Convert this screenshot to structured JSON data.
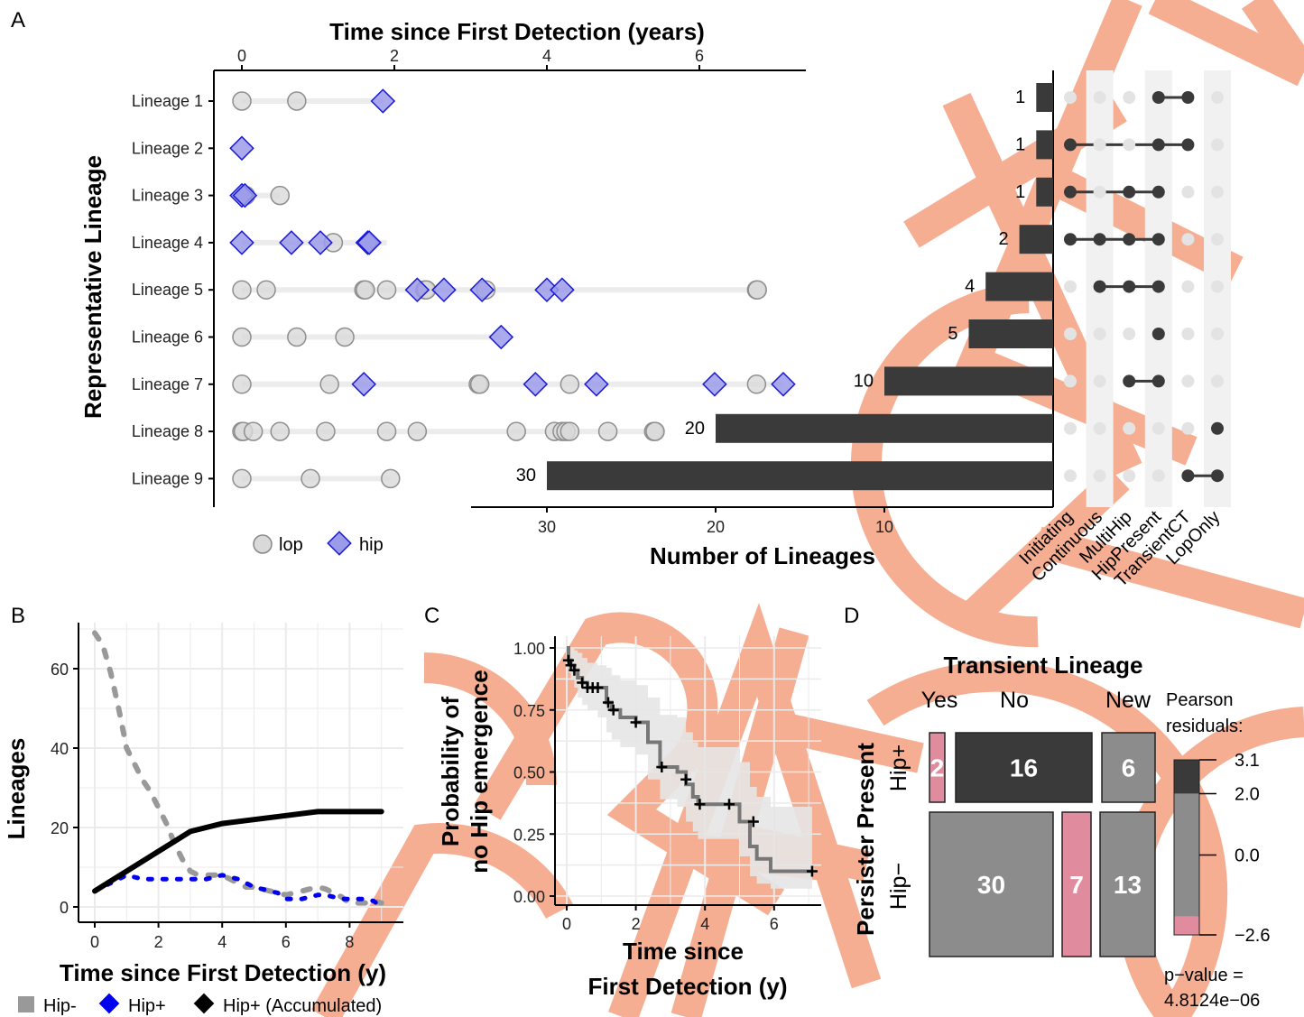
{
  "panels": {
    "A": "A",
    "B": "B",
    "C": "C",
    "D": "D"
  },
  "colors": {
    "lop": "#d9d9d9",
    "hip": "#9b9bea",
    "hip_stroke": "#1a1ad6",
    "bar": "#3a3a3a",
    "watermark": "#f5a080",
    "pink": "#e08c9e",
    "gray": "#8c8c8c",
    "dark": "#3a3a3a"
  },
  "chart_data": [
    {
      "id": "A-left",
      "type": "scatter",
      "title": "Time since First Detection (years)",
      "ylabel": "Representative Lineage",
      "xlim": [
        0,
        7.4
      ],
      "x_ticks": [
        "0",
        "2",
        "4",
        "6"
      ],
      "lineages": [
        "Lineage 1",
        "Lineage 2",
        "Lineage 3",
        "Lineage 4",
        "Lineage 5",
        "Lineage 6",
        "Lineage 7",
        "Lineage 8",
        "Lineage 9"
      ],
      "legend": [
        {
          "key": "lop",
          "label": "lop"
        },
        {
          "key": "hip",
          "label": "hip"
        }
      ],
      "points": {
        "lop": [
          [
            0,
            0
          ],
          [
            0.72,
            0
          ],
          [
            0.05,
            2
          ],
          [
            0.5,
            2
          ],
          [
            1.2,
            3
          ],
          [
            0,
            4
          ],
          [
            0.32,
            4
          ],
          [
            1.6,
            4
          ],
          [
            1.62,
            4
          ],
          [
            1.9,
            4
          ],
          [
            2.4,
            4
          ],
          [
            2.42,
            4
          ],
          [
            3.2,
            4
          ],
          [
            6.75,
            4
          ],
          [
            6.76,
            4
          ],
          [
            0,
            5
          ],
          [
            0.72,
            5
          ],
          [
            1.35,
            5
          ],
          [
            0,
            6
          ],
          [
            1.15,
            6
          ],
          [
            3.1,
            6
          ],
          [
            3.12,
            6
          ],
          [
            4.3,
            6
          ],
          [
            6.75,
            6
          ],
          [
            0,
            7
          ],
          [
            0.02,
            7
          ],
          [
            0.15,
            7
          ],
          [
            0.5,
            7
          ],
          [
            1.1,
            7
          ],
          [
            1.9,
            7
          ],
          [
            2.3,
            7
          ],
          [
            3.6,
            7
          ],
          [
            4.1,
            7
          ],
          [
            4.2,
            7
          ],
          [
            4.25,
            7
          ],
          [
            4.3,
            7
          ],
          [
            4.8,
            7
          ],
          [
            5.4,
            7
          ],
          [
            5.42,
            7
          ],
          [
            0,
            8
          ],
          [
            0.9,
            8
          ],
          [
            1.95,
            8
          ]
        ],
        "hip": [
          [
            1.85,
            0
          ],
          [
            0,
            1
          ],
          [
            0,
            2
          ],
          [
            0.04,
            2
          ],
          [
            0,
            3
          ],
          [
            0.65,
            3
          ],
          [
            1.03,
            3
          ],
          [
            1.65,
            3
          ],
          [
            1.67,
            3
          ],
          [
            2.3,
            4
          ],
          [
            2.65,
            4
          ],
          [
            3.15,
            4
          ],
          [
            4.0,
            4
          ],
          [
            4.2,
            4
          ],
          [
            3.4,
            5
          ],
          [
            1.6,
            6
          ],
          [
            3.85,
            6
          ],
          [
            4.65,
            6
          ],
          [
            6.2,
            6
          ],
          [
            7.1,
            6
          ]
        ]
      },
      "line_extent": [
        [
          0,
          1.85
        ],
        [
          0,
          0
        ],
        [
          0,
          0.5
        ],
        [
          0,
          1.9
        ],
        [
          0,
          6.75
        ],
        [
          0,
          3.4
        ],
        [
          0,
          7.1
        ],
        [
          0,
          5.42
        ],
        [
          0,
          1.95
        ]
      ]
    },
    {
      "id": "A-right",
      "type": "bar",
      "xlabel": "Number of Lineages",
      "x_ticks": [
        "30",
        "20",
        "10"
      ],
      "values": [
        1,
        1,
        1,
        2,
        4,
        5,
        10,
        20,
        30
      ],
      "sets": [
        "Initiating",
        "Continuous",
        "MultiHip",
        "HipPresent",
        "TransientCT",
        "LopOnly"
      ],
      "membership": [
        [
          0,
          0,
          0,
          1,
          1,
          0
        ],
        [
          1,
          0,
          0,
          1,
          1,
          0
        ],
        [
          1,
          0,
          1,
          1,
          0,
          0
        ],
        [
          1,
          1,
          1,
          1,
          0,
          0
        ],
        [
          0,
          1,
          1,
          1,
          0,
          0
        ],
        [
          0,
          0,
          0,
          1,
          0,
          0
        ],
        [
          0,
          0,
          1,
          1,
          0,
          0
        ],
        [
          0,
          0,
          0,
          0,
          0,
          1
        ],
        [
          0,
          0,
          0,
          0,
          1,
          1
        ]
      ]
    },
    {
      "id": "B",
      "type": "line",
      "xlabel": "Time since First Detection (y)",
      "ylabel": "Lineages",
      "xlim": [
        -0.5,
        9.3
      ],
      "ylim": [
        -1,
        72
      ],
      "x_ticks": [
        "0",
        "2",
        "4",
        "6",
        "8"
      ],
      "y_ticks": [
        "0",
        "20",
        "40",
        "60"
      ],
      "series": [
        {
          "name": "Hip-",
          "x": [
            0,
            0.25,
            0.5,
            0.75,
            1,
            1.25,
            1.5,
            1.75,
            2,
            2.25,
            2.5,
            2.75,
            3,
            3.25,
            3.5,
            3.75,
            4,
            4.25,
            4.5,
            4.75,
            5,
            5.25,
            5.5,
            5.75,
            6,
            6.25,
            6.5,
            6.75,
            7,
            7.25,
            7.5,
            7.75,
            8,
            8.25,
            8.5,
            8.75,
            9
          ],
          "values": [
            69,
            66,
            59,
            50,
            40,
            36,
            32,
            29,
            25,
            21,
            16,
            12,
            9,
            8,
            8,
            8,
            8,
            7,
            6,
            5,
            5,
            4.5,
            4,
            3.5,
            3,
            3.5,
            4,
            4.5,
            5,
            4.5,
            3.5,
            2.5,
            1,
            1,
            1,
            1.5,
            1
          ]
        },
        {
          "name": "Hip+",
          "x": [
            0,
            0.25,
            0.5,
            0.75,
            1,
            1.25,
            1.5,
            1.75,
            2,
            2.25,
            2.5,
            2.75,
            3,
            3.25,
            3.5,
            3.75,
            4,
            4.25,
            4.5,
            4.75,
            5,
            5.25,
            5.5,
            5.75,
            6,
            6.25,
            6.5,
            6.75,
            7,
            7.25,
            7.5,
            7.75,
            8,
            8.25,
            8.5,
            8.75,
            9
          ],
          "values": [
            4,
            5,
            6,
            7,
            8,
            7.5,
            7,
            7,
            7,
            7,
            7,
            7,
            7,
            7,
            7,
            7.5,
            8,
            7.5,
            7,
            6,
            5,
            4.5,
            4,
            3.5,
            2,
            2,
            2,
            2.5,
            3,
            3,
            2.5,
            2,
            2,
            2,
            2,
            1.5,
            0
          ]
        },
        {
          "name": "Hip+ (Accumulated)",
          "x": [
            0,
            1,
            2,
            3,
            4,
            5,
            6,
            7,
            8,
            9
          ],
          "values": [
            4,
            9,
            14,
            19,
            21,
            22,
            23,
            24,
            24,
            24
          ]
        }
      ]
    },
    {
      "id": "C",
      "type": "line",
      "xlabel": "Time since First Detection (y)",
      "ylabel": "Probability of no Hip emergence",
      "xlim": [
        -0.2,
        7.3
      ],
      "ylim": [
        -0.02,
        1.02
      ],
      "x_ticks": [
        "0",
        "2",
        "4",
        "6"
      ],
      "y_ticks": [
        "0.00",
        "0.25",
        "0.50",
        "0.75",
        "1.00"
      ],
      "step": {
        "x": [
          0,
          0.05,
          0.12,
          0.22,
          0.32,
          0.45,
          0.6,
          0.9,
          1.15,
          1.3,
          1.55,
          2.0,
          2.35,
          2.7,
          3.2,
          3.45,
          3.65,
          3.8,
          4.1,
          4.4,
          4.75,
          5.0,
          5.3,
          5.5,
          5.9,
          7.1
        ],
        "values": [
          1.0,
          0.95,
          0.93,
          0.91,
          0.88,
          0.86,
          0.84,
          0.84,
          0.78,
          0.75,
          0.72,
          0.7,
          0.62,
          0.52,
          0.5,
          0.45,
          0.4,
          0.37,
          0.37,
          0.37,
          0.37,
          0.3,
          0.2,
          0.15,
          0.1,
          0.1
        ]
      },
      "ci_upper": [
        1.0,
        1.0,
        1.0,
        0.99,
        0.98,
        0.96,
        0.94,
        0.93,
        0.92,
        0.89,
        0.87,
        0.85,
        0.8,
        0.73,
        0.72,
        0.66,
        0.62,
        0.6,
        0.6,
        0.6,
        0.6,
        0.54,
        0.44,
        0.4,
        0.36,
        0.36
      ],
      "ci_lower": [
        0.98,
        0.9,
        0.87,
        0.84,
        0.8,
        0.77,
        0.75,
        0.72,
        0.66,
        0.63,
        0.6,
        0.57,
        0.47,
        0.39,
        0.36,
        0.3,
        0.26,
        0.23,
        0.23,
        0.23,
        0.23,
        0.16,
        0.08,
        0.05,
        0.03,
        0.03
      ],
      "censor": [
        [
          0.05,
          0.95
        ],
        [
          0.12,
          0.93
        ],
        [
          0.22,
          0.91
        ],
        [
          0.45,
          0.86
        ],
        [
          0.6,
          0.84
        ],
        [
          0.75,
          0.84
        ],
        [
          0.9,
          0.84
        ],
        [
          1.2,
          0.78
        ],
        [
          1.35,
          0.75
        ],
        [
          2.0,
          0.7
        ],
        [
          2.75,
          0.52
        ],
        [
          3.45,
          0.47
        ],
        [
          3.85,
          0.37
        ],
        [
          4.7,
          0.37
        ],
        [
          5.4,
          0.3
        ],
        [
          7.1,
          0.1
        ]
      ]
    },
    {
      "id": "D",
      "type": "heatmap",
      "title": "Transient Lineage",
      "ylabel": "Persister Present",
      "columns": [
        "Yes",
        "No",
        "New"
      ],
      "rows": [
        "Hip+",
        "Hip−"
      ],
      "cells": [
        {
          "row": 0,
          "col": 0,
          "value": 2,
          "residual": "pink"
        },
        {
          "row": 0,
          "col": 1,
          "value": 16,
          "residual": "dark"
        },
        {
          "row": 0,
          "col": 2,
          "value": 6,
          "residual": "gray"
        },
        {
          "row": 1,
          "col": 0,
          "value": 30,
          "residual": "gray"
        },
        {
          "row": 1,
          "col": 1,
          "value": 7,
          "residual": "pink"
        },
        {
          "row": 1,
          "col": 2,
          "value": 13,
          "residual": "gray"
        }
      ],
      "legend_title": [
        "Pearson",
        "residuals:"
      ],
      "legend_ticks": [
        "3.1",
        "2.0",
        "0.0",
        "−2.6"
      ],
      "legend_values": [
        3.1,
        2.0,
        0.0,
        -2.6
      ],
      "pvalue": [
        "p−value =",
        "4.8124e−06"
      ]
    }
  ],
  "legendB": [
    "Hip-",
    "Hip+",
    "Hip+ (Accumulated)"
  ]
}
